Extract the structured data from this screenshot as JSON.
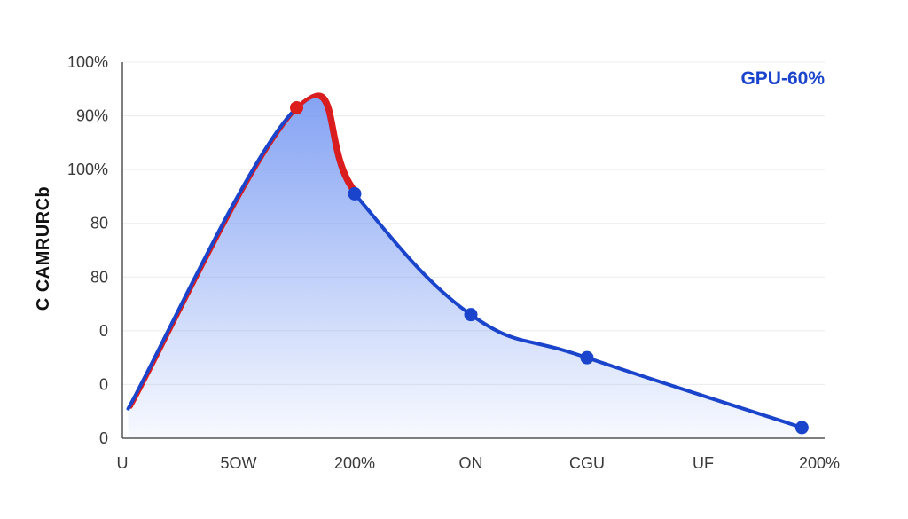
{
  "chart_data": {
    "type": "area",
    "ylabel": "C CAMRURCb",
    "y_tick_labels": [
      "0",
      "0",
      "0",
      "80",
      "80",
      "100%",
      "90%",
      "100%"
    ],
    "x_tick_labels": [
      "U",
      "5OW",
      "200%",
      "ON",
      "CGU",
      "UF",
      "200%"
    ],
    "ylim": [
      0,
      7
    ],
    "xlim": [
      0,
      6
    ],
    "grid": true,
    "series": [
      {
        "name": "GPU-60%",
        "color": "#1a44cc",
        "peak_color": "#dd1c1c",
        "fill_color": "#6f93f2",
        "points": [
          {
            "x": 0.05,
            "y": 0.55
          },
          {
            "x": 1.5,
            "y": 6.15
          },
          {
            "x": 2.0,
            "y": 4.55
          },
          {
            "x": 3.0,
            "y": 2.3
          },
          {
            "x": 4.0,
            "y": 1.5
          },
          {
            "x": 5.85,
            "y": 0.2
          }
        ],
        "markers": [
          {
            "x": 1.5,
            "y": 6.15,
            "color": "#dd1c1c"
          },
          {
            "x": 2.0,
            "y": 4.55,
            "color": "#1a44cc"
          },
          {
            "x": 3.0,
            "y": 2.3,
            "color": "#1a44cc"
          },
          {
            "x": 4.0,
            "y": 1.5,
            "color": "#1a44cc"
          },
          {
            "x": 5.85,
            "y": 0.2,
            "color": "#1a44cc"
          }
        ]
      }
    ]
  }
}
